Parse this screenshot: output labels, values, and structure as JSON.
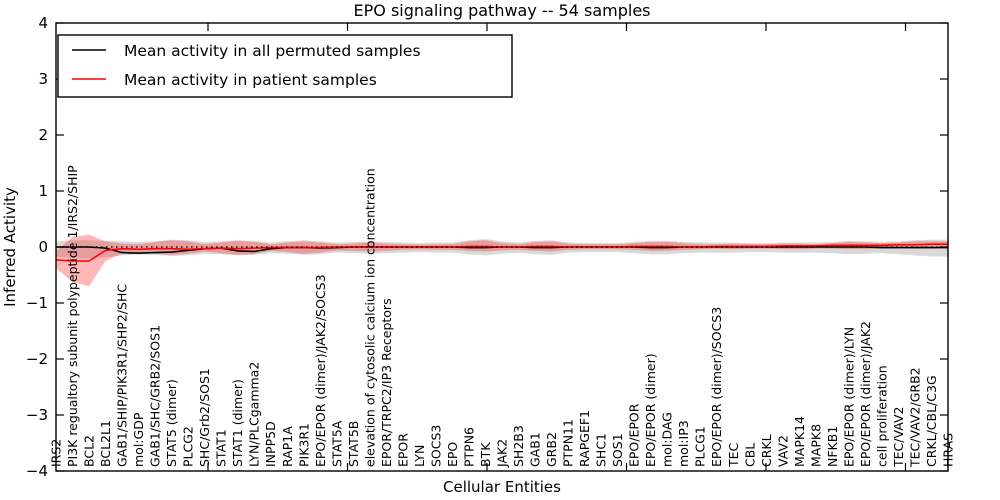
{
  "figure": {
    "title": "EPO signaling pathway -- 54 samples",
    "xlabel": "Cellular Entities",
    "ylabel": "Inferred Activity",
    "background": "#ffffff"
  },
  "legend": {
    "entries": [
      {
        "label": "Mean activity in all permuted samples",
        "color": "#000000"
      },
      {
        "label": "Mean activity in patient samples",
        "color": "#ff0000"
      }
    ]
  },
  "axes": {
    "y_tick_labels": [
      "4",
      "3",
      "2",
      "1",
      "0",
      "−1",
      "−2",
      "−3",
      "−4"
    ],
    "y_tick_values": [
      4,
      3,
      2,
      1,
      0,
      -1,
      -2,
      -3,
      -4
    ]
  },
  "colors": {
    "permuted_line": "#000000",
    "patient_line": "#ff0000",
    "permuted_band": "#808080",
    "permuted_band_opacity": 0.3,
    "patient_band": "#ff2020",
    "patient_band_opacity": 0.32,
    "zero_line": "#000000"
  },
  "chart_data": {
    "type": "line",
    "title": "EPO signaling pathway -- 54 samples",
    "xlabel": "Cellular Entities",
    "ylabel": "Inferred Activity",
    "ylim": [
      -4,
      4
    ],
    "grid": false,
    "legend_position": "upper left",
    "zero_line_style": "dotted",
    "categories": [
      "IRS2",
      "PI3K regualtory subunit polypeptide 1/IRS2/SHIP",
      "BCL2",
      "BCL2L1",
      "GAB1/SHIP/PIK3R1/SHP2/SHC",
      "mol:GDP",
      "GAB1/SHC/GRB2/SOS1",
      "STAT5 (dimer)",
      "PLCG2",
      "SHC/Grb2/SOS1",
      "STAT1",
      "STAT1 (dimer)",
      "LYN/PLCgamma2",
      "INPP5D",
      "RAP1A",
      "PIK3R1",
      "EPO/EPOR (dimer)/JAK2/SOCS3",
      "STAT5A",
      "STAT5B",
      "elevation of cytosolic calcium ion concentration",
      "EPOR/TRPC2/IP3 Receptors",
      "EPOR",
      "LYN",
      "SOCS3",
      "EPO",
      "PTPN6",
      "BTK",
      "JAK2",
      "SH2B3",
      "GAB1",
      "GRB2",
      "PTPN11",
      "RAPGEF1",
      "SHC1",
      "SOS1",
      "EPO/EPOR",
      "EPO/EPOR (dimer)",
      "mol:DAG",
      "mol:IP3",
      "PLCG1",
      "EPO/EPOR (dimer)/SOCS3",
      "TEC",
      "CBL",
      "CRKL",
      "VAV2",
      "MAPK14",
      "MAPK8",
      "NFKB1",
      "EPO/EPOR (dimer)/LYN",
      "EPO/EPOR (dimer)/JAK2",
      "cell proliferation",
      "TEC/VAV2",
      "TEC/VAV2/GRB2",
      "CRKL/CBL/C3G",
      "HRAS"
    ],
    "series": [
      {
        "name": "Mean activity in all permuted samples",
        "color": "#000000",
        "values": [
          0,
          0,
          0,
          -0.02,
          -0.1,
          -0.11,
          -0.1,
          -0.09,
          -0.06,
          -0.03,
          -0.02,
          -0.07,
          -0.08,
          -0.03,
          -0.01,
          -0.01,
          -0.02,
          -0.01,
          0,
          0,
          0,
          0,
          0,
          0,
          0,
          -0.01,
          -0.01,
          0,
          0,
          -0.01,
          -0.01,
          0,
          0,
          0,
          0,
          0,
          -0.01,
          -0.01,
          0,
          0,
          0,
          0,
          0,
          0,
          0,
          0,
          0,
          0,
          0,
          0,
          -0.01,
          -0.01,
          -0.01,
          -0.01,
          -0.01
        ]
      },
      {
        "name": "Mean activity in patient samples",
        "color": "#ff0000",
        "values": [
          -0.23,
          -0.25,
          -0.25,
          -0.06,
          -0.03,
          -0.04,
          -0.03,
          -0.03,
          -0.04,
          -0.03,
          -0.02,
          -0.03,
          -0.02,
          -0.01,
          -0.01,
          -0.01,
          -0.01,
          0,
          0,
          0,
          0,
          0,
          0,
          0,
          0,
          0.01,
          0.01,
          0,
          0,
          0.01,
          0.01,
          0,
          0,
          0,
          0,
          0.01,
          0.01,
          0.01,
          0,
          0,
          0.01,
          0.01,
          0.01,
          0.01,
          0.02,
          0.02,
          0.02,
          0.03,
          0.03,
          0.03,
          0.03,
          0.04,
          0.04,
          0.05,
          0.05
        ]
      }
    ],
    "bands": [
      {
        "name": "permuted samples range",
        "hi": [
          0.1,
          0.12,
          0.12,
          0.11,
          0.1,
          0.09,
          0.1,
          0.13,
          0.12,
          0.09,
          0.1,
          0.12,
          0.11,
          0.08,
          0.1,
          0.12,
          0.1,
          0.08,
          0.09,
          0.1,
          0.09,
          0.08,
          0.07,
          0.08,
          0.08,
          0.12,
          0.14,
          0.1,
          0.08,
          0.11,
          0.12,
          0.08,
          0.07,
          0.07,
          0.07,
          0.09,
          0.11,
          0.11,
          0.09,
          0.08,
          0.08,
          0.08,
          0.07,
          0.07,
          0.08,
          0.08,
          0.08,
          0.09,
          0.11,
          0.1,
          0.09,
          0.1,
          0.12,
          0.13,
          0.13
        ],
        "lo": [
          -0.17,
          -0.2,
          -0.2,
          -0.18,
          -0.15,
          -0.13,
          -0.14,
          -0.16,
          -0.15,
          -0.12,
          -0.13,
          -0.15,
          -0.14,
          -0.11,
          -0.12,
          -0.14,
          -0.13,
          -0.1,
          -0.11,
          -0.12,
          -0.11,
          -0.1,
          -0.09,
          -0.1,
          -0.1,
          -0.13,
          -0.15,
          -0.12,
          -0.1,
          -0.13,
          -0.14,
          -0.1,
          -0.09,
          -0.09,
          -0.09,
          -0.11,
          -0.13,
          -0.13,
          -0.11,
          -0.1,
          -0.1,
          -0.1,
          -0.09,
          -0.09,
          -0.1,
          -0.1,
          -0.1,
          -0.11,
          -0.13,
          -0.12,
          -0.11,
          -0.13,
          -0.15,
          -0.17,
          -0.17
        ]
      },
      {
        "name": "patient samples range",
        "hi": [
          -0.08,
          0.18,
          0.22,
          0.1,
          0.06,
          0.05,
          0.09,
          0.12,
          0.1,
          0.05,
          0.08,
          0.11,
          0.09,
          0.05,
          0.08,
          0.1,
          0.08,
          0.05,
          0.06,
          0.08,
          0.06,
          0.05,
          0.04,
          0.05,
          0.05,
          0.1,
          0.12,
          0.07,
          0.05,
          0.09,
          0.1,
          0.06,
          0.05,
          0.05,
          0.05,
          0.07,
          0.09,
          0.09,
          0.07,
          0.05,
          0.05,
          0.06,
          0.05,
          0.05,
          0.06,
          0.06,
          0.05,
          0.07,
          0.09,
          0.08,
          0.07,
          0.08,
          0.1,
          0.1,
          0.1
        ],
        "lo": [
          -0.38,
          -0.62,
          -0.7,
          -0.25,
          -0.12,
          -0.1,
          -0.12,
          -0.14,
          -0.12,
          -0.08,
          -0.11,
          -0.14,
          -0.12,
          -0.07,
          -0.09,
          -0.12,
          -0.1,
          -0.06,
          -0.07,
          -0.08,
          -0.07,
          -0.05,
          -0.04,
          -0.05,
          -0.05,
          -0.07,
          -0.08,
          -0.06,
          -0.05,
          -0.07,
          -0.08,
          -0.05,
          -0.04,
          -0.04,
          -0.04,
          -0.05,
          -0.07,
          -0.07,
          -0.05,
          -0.04,
          -0.03,
          -0.04,
          -0.03,
          -0.03,
          -0.04,
          -0.04,
          -0.03,
          -0.03,
          -0.04,
          -0.04,
          -0.03,
          -0.02,
          -0.03,
          -0.03,
          -0.02
        ]
      }
    ]
  }
}
